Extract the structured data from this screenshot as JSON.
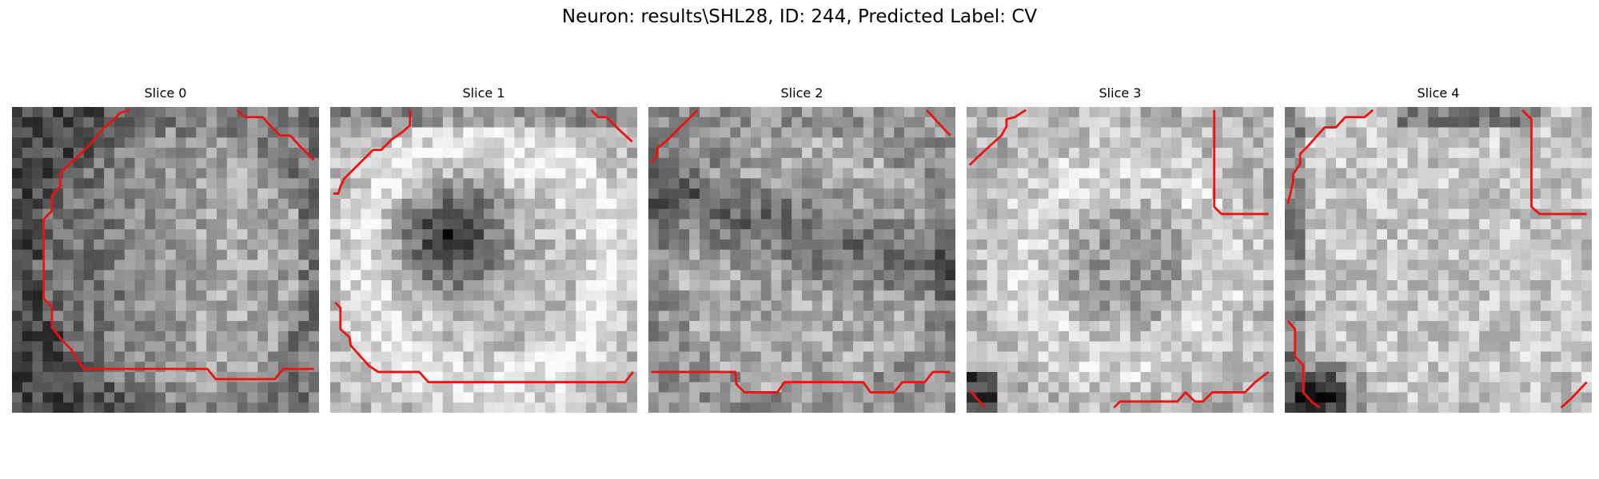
{
  "figure": {
    "title": "Neuron: results\\SHL28, ID: 244, Predicted Label: CV"
  },
  "panels": [
    {
      "label": "Slice 0"
    },
    {
      "label": "Slice 1"
    },
    {
      "label": "Slice 2"
    },
    {
      "label": "Slice 3"
    },
    {
      "label": "Slice 4"
    }
  ],
  "colors": {
    "contour": "#ee1111",
    "colormap": "gray"
  }
}
